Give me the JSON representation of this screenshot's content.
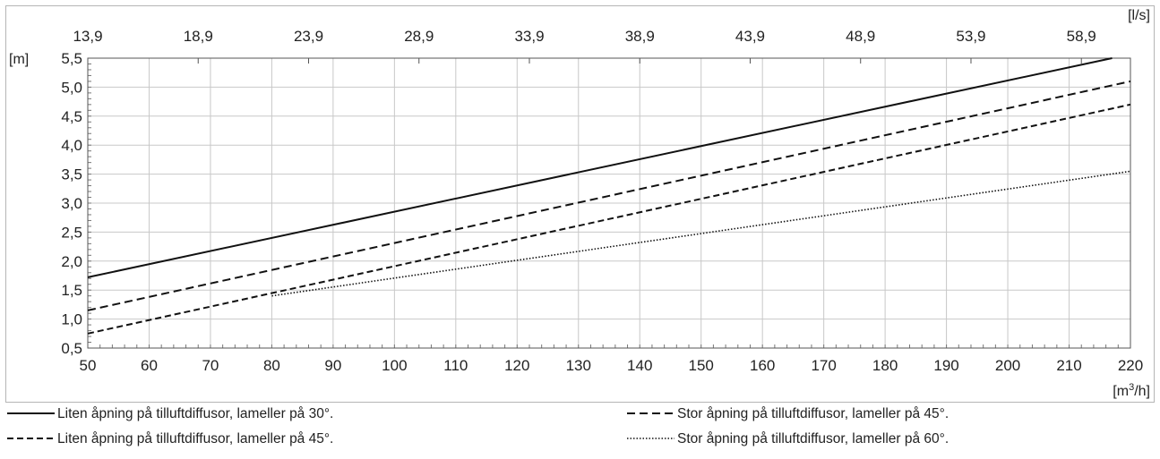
{
  "chart_data": {
    "type": "line",
    "x_unit_label": "[m³/h]",
    "x_unit_label_base": "[m",
    "x_unit_label_sup": "3",
    "x_unit_label_tail": "/h]",
    "y_unit_label": "[m]",
    "top_unit_label": "[l/s]",
    "xlim": [
      50,
      220
    ],
    "ylim": [
      0.5,
      5.5
    ],
    "x_ticks": [
      "50",
      "60",
      "70",
      "80",
      "90",
      "100",
      "110",
      "120",
      "130",
      "140",
      "150",
      "160",
      "170",
      "180",
      "190",
      "200",
      "210",
      "220"
    ],
    "y_ticks": [
      "0,5",
      "1,0",
      "1,5",
      "2,0",
      "2,5",
      "3,0",
      "3,5",
      "4,0",
      "4,5",
      "5,0",
      "5,5"
    ],
    "top_ticks": [
      "13,9",
      "18,9",
      "23,9",
      "28,9",
      "33,9",
      "38,9",
      "43,9",
      "48,9",
      "53,9",
      "58,9"
    ],
    "top_tick_positions_m3h": [
      50,
      68,
      86,
      104,
      122,
      140,
      158,
      176,
      194,
      212
    ],
    "grid": true,
    "series": [
      {
        "name": "Liten åpning på tilluftdiffusor, lameller på 30°.",
        "style": "solid",
        "x": [
          50,
          217
        ],
        "y": [
          1.72,
          5.5
        ]
      },
      {
        "name": "Liten åpning på tilluftdiffusor, lameller på 45°.",
        "style": "dash",
        "x": [
          50,
          220
        ],
        "y": [
          0.75,
          4.7
        ]
      },
      {
        "name": "Stor åpning på tilluftdiffusor, lameller på 45°.",
        "style": "longdash",
        "x": [
          50,
          220
        ],
        "y": [
          1.15,
          5.1
        ]
      },
      {
        "name": "Stor åpning på tilluftdiffusor, lameller på 60°.",
        "style": "dot",
        "x": [
          80,
          220
        ],
        "y": [
          1.4,
          3.55
        ]
      }
    ],
    "legend_position": "bottom"
  }
}
